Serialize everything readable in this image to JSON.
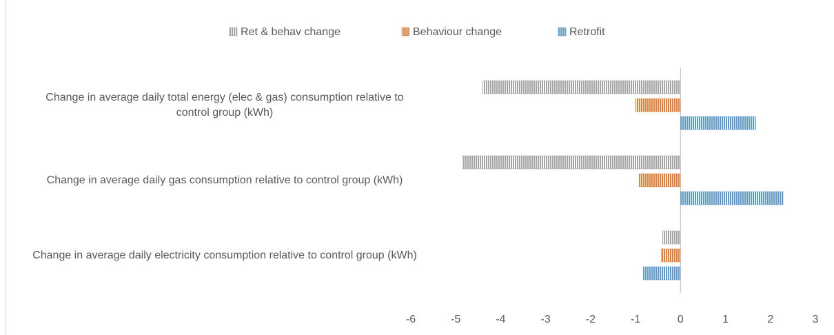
{
  "chart_data": {
    "type": "bar",
    "orientation": "horizontal",
    "categories": [
      "Change in average daily total energy (elec & gas) consumption relative to control group (kWh)",
      "Change in average daily gas consumption relative to control group (kWh)",
      "Change in average daily electricity consumption relative to control group (kWh)"
    ],
    "series": [
      {
        "name": "Ret & behav change",
        "color": "#a5a5a5",
        "values": [
          -4.4,
          -4.85,
          -0.4
        ]
      },
      {
        "name": "Behaviour change",
        "color": "#ed7d31",
        "values": [
          -1.0,
          -0.92,
          -0.43
        ]
      },
      {
        "name": "Retrofit",
        "color": "#5b9bd5",
        "values": [
          1.67,
          2.28,
          -0.83
        ]
      }
    ],
    "xlim": [
      -6,
      3
    ],
    "xticks": [
      -6,
      -5,
      -4,
      -3,
      -2,
      -1,
      0,
      1,
      2,
      3
    ],
    "legend": "top"
  }
}
